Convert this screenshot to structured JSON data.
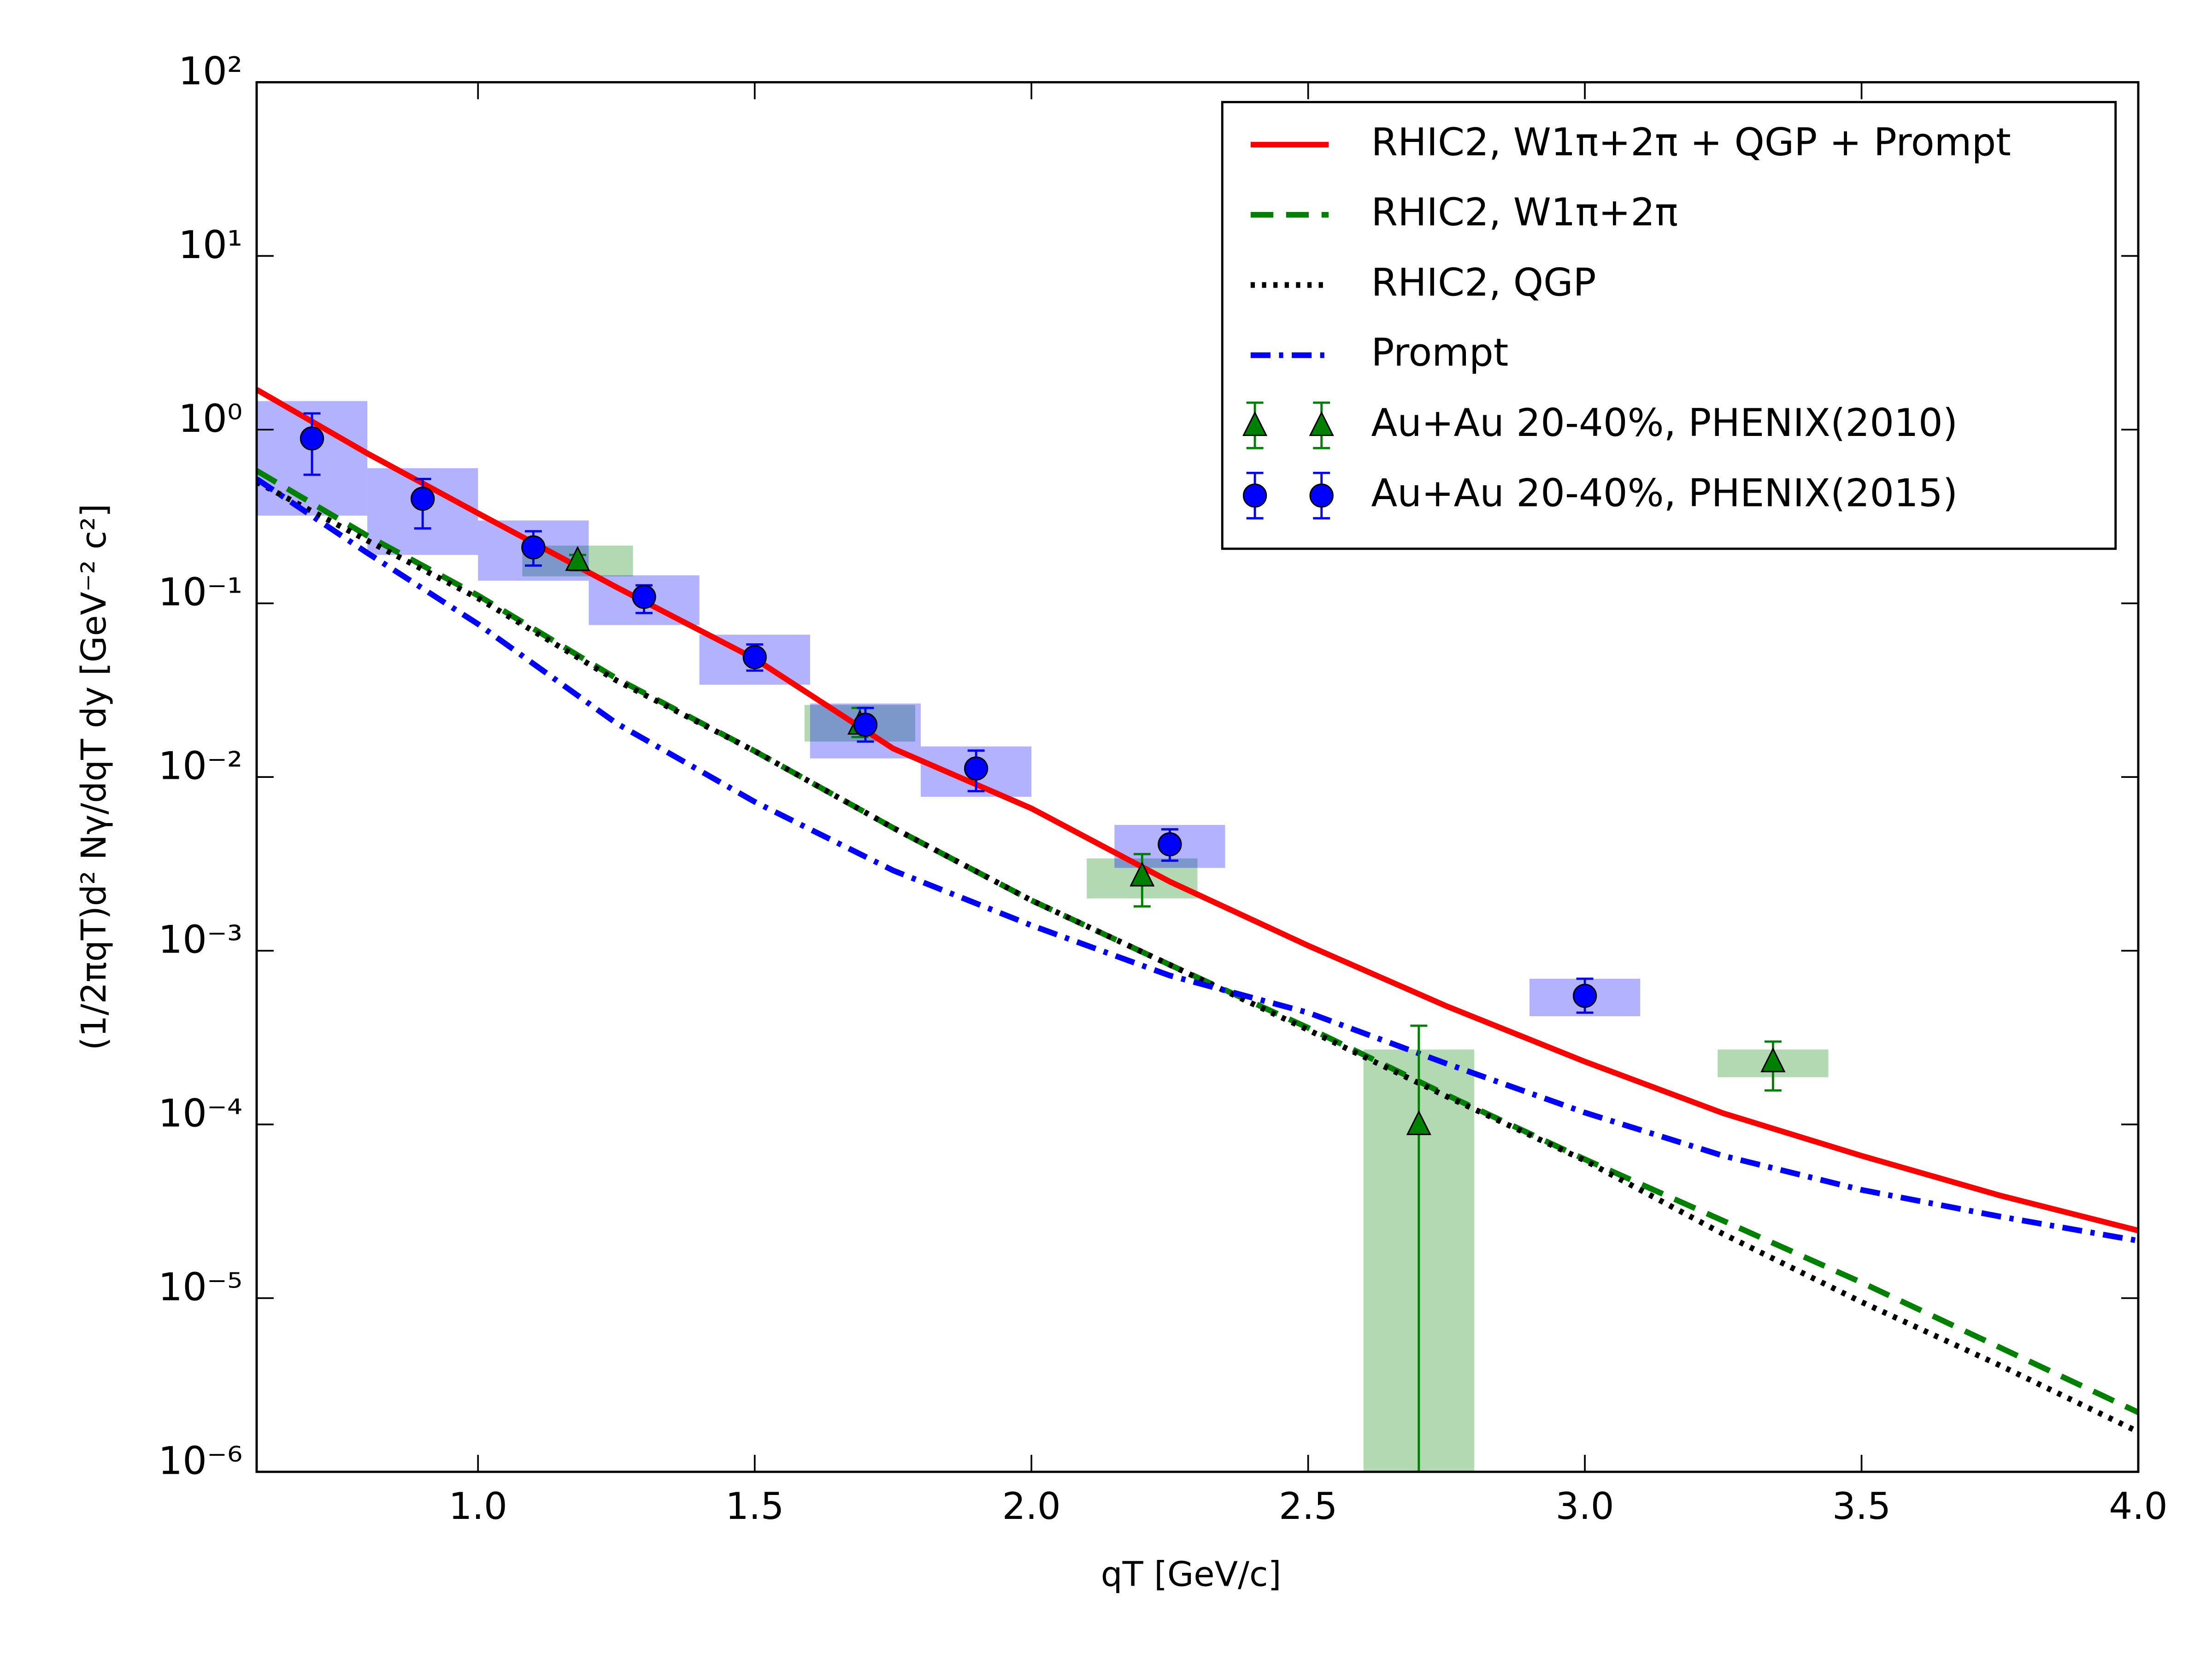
{
  "chart_data": {
    "type": "line",
    "xlabel": "qT [GeV/c]",
    "ylabel": "(1/2πqT)d² Nγ/dqT dy [GeV⁻² c²]",
    "xlim": [
      0.6,
      4.0
    ],
    "ylim": [
      1e-06,
      100
    ],
    "ylog": true,
    "xticks": [
      {
        "value": 1,
        "label": "1.0"
      },
      1.5,
      {
        "value": 2,
        "label": "2.0"
      },
      2.5,
      {
        "value": 3,
        "label": "3.0"
      },
      3.5,
      {
        "value": 4,
        "label": "4.0"
      }
    ],
    "yticks": [
      {
        "value": 100,
        "label": "10²"
      },
      {
        "value": 10,
        "label": "10¹"
      },
      {
        "value": 1,
        "label": "10⁰"
      },
      {
        "value": 0.1,
        "label": "10⁻¹"
      },
      {
        "value": 0.01,
        "label": "10⁻²"
      },
      {
        "value": 0.001,
        "label": "10⁻³"
      },
      {
        "value": 0.0001,
        "label": "10⁻⁴"
      },
      {
        "value": 1e-05,
        "label": "10⁻⁵"
      },
      {
        "value": 1e-06,
        "label": "10⁻⁶"
      }
    ],
    "legend": "upper right",
    "x": [
      0.6,
      0.8,
      1.0,
      1.25,
      1.5,
      1.75,
      2.0,
      2.25,
      2.5,
      2.75,
      3.0,
      3.25,
      3.5,
      3.75,
      4.0
    ],
    "series": [
      {
        "name": "RHIC2, W1π+2π + QGP + Prompt",
        "color": "#ff0000",
        "dash": "solid",
        "values": [
          1.7,
          0.73,
          0.33,
          0.124,
          0.048,
          0.0146,
          0.0066,
          0.0025,
          0.00107,
          0.00048,
          0.00023,
          0.000116,
          6.6e-05,
          3.9e-05,
          2.45e-05
        ]
      },
      {
        "name": "RHIC2, W1π+2π",
        "color": "#008000",
        "dash": "dashed",
        "values": [
          0.58,
          0.245,
          0.111,
          0.037,
          0.0141,
          0.0051,
          0.00195,
          0.00083,
          0.00036,
          0.000148,
          6.3e-05,
          2.79e-05,
          1.23e-05,
          5.2e-06,
          2.2e-06
        ]
      },
      {
        "name": "RHIC2, QGP",
        "color": "#000000",
        "dash": "dotted",
        "values": [
          0.5,
          0.23,
          0.107,
          0.036,
          0.0141,
          0.0051,
          0.00195,
          0.00083,
          0.00035,
          0.000145,
          6.2e-05,
          2.34e-05,
          9.5e-06,
          4.1e-06,
          1.7e-06
        ]
      },
      {
        "name": "Prompt",
        "color": "#0000ff",
        "dash": "dashdot",
        "values": [
          0.52,
          0.195,
          0.076,
          0.0204,
          0.0072,
          0.0029,
          0.0014,
          0.00072,
          0.00044,
          0.000224,
          0.000117,
          6.6e-05,
          4.2e-05,
          2.95e-05,
          2.14e-05
        ]
      }
    ],
    "points": [
      {
        "name": "Au+Au 20-40%, PHENIX(2010)",
        "color": "#008000",
        "marker": "triangle",
        "x": [
          1.18,
          1.69,
          2.2,
          2.7,
          3.34
        ],
        "values": [
          0.177,
          0.0202,
          0.0027,
          0.0001,
          0.00023
        ],
        "yerr_lower": [
          0.155,
          0.017,
          0.0018,
          1e-06,
          0.000157
        ],
        "yerr_upper": [
          0.19,
          0.025,
          0.0036,
          0.00037,
          0.0003
        ],
        "sys_lower": [
          0.143,
          0.016,
          0.002,
          1e-06,
          0.000187
        ],
        "sys_upper": [
          0.215,
          0.026,
          0.0034,
          0.00027,
          0.00027
        ]
      },
      {
        "name": "Au+Au 20-40%, PHENIX(2015)",
        "color": "#0000ff",
        "marker": "circle",
        "x": [
          0.7,
          0.9,
          1.1,
          1.3,
          1.5,
          1.7,
          1.9,
          2.25,
          3.0
        ],
        "values": [
          0.89,
          0.4,
          0.21,
          0.109,
          0.049,
          0.02,
          0.0112,
          0.0041,
          0.00055
        ],
        "yerr_lower": [
          0.55,
          0.27,
          0.165,
          0.088,
          0.041,
          0.016,
          0.0083,
          0.0033,
          0.00044
        ],
        "yerr_upper": [
          1.24,
          0.52,
          0.26,
          0.127,
          0.058,
          0.025,
          0.0142,
          0.005,
          0.00069
        ],
        "sys_lower": [
          0.32,
          0.19,
          0.135,
          0.075,
          0.034,
          0.0128,
          0.0077,
          0.003,
          0.00042
        ],
        "sys_upper": [
          1.46,
          0.6,
          0.3,
          0.145,
          0.066,
          0.0265,
          0.015,
          0.0053,
          0.00069
        ]
      }
    ]
  }
}
